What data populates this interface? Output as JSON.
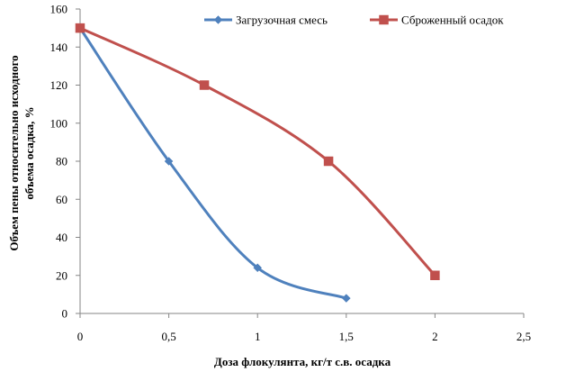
{
  "chart_data": {
    "type": "scatter",
    "title": "",
    "xlabel": "Доза флокулянта, кг/т с.в. осадка",
    "ylabel_lines": [
      "Объем пены относительно исходного",
      "объема осадка, %"
    ],
    "xlim": [
      0,
      2.5
    ],
    "ylim": [
      0,
      160
    ],
    "x_ticks": [
      0,
      0.5,
      1,
      1.5,
      2,
      2.5
    ],
    "x_tick_labels": [
      "0",
      "0,5",
      "1",
      "1,5",
      "2",
      "2,5"
    ],
    "y_ticks": [
      0,
      20,
      40,
      60,
      80,
      100,
      120,
      140,
      160
    ],
    "y_tick_labels": [
      "0",
      "20",
      "40",
      "60",
      "80",
      "100",
      "120",
      "140",
      "160"
    ],
    "grid": false,
    "legend_position": "top-right",
    "series": [
      {
        "name": "Загрузочная смесь",
        "marker": "diamond",
        "color": "#4F81BD",
        "line": "smooth",
        "x": [
          0,
          0.5,
          1,
          1.5
        ],
        "y": [
          150,
          80,
          24,
          8
        ]
      },
      {
        "name": "Сброженный осадок",
        "marker": "square",
        "color": "#C0504D",
        "line": "smooth",
        "x": [
          0,
          0.7,
          1.4,
          2
        ],
        "y": [
          150,
          120,
          80,
          20
        ]
      }
    ]
  }
}
